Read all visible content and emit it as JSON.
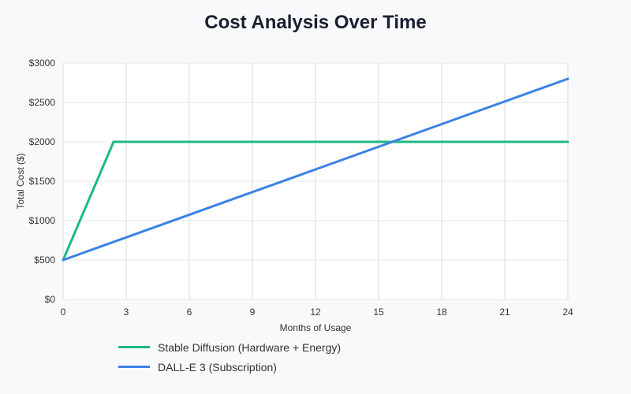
{
  "chart_data": {
    "type": "line",
    "title": "Cost Analysis Over Time",
    "xlabel": "Months of Usage",
    "ylabel": "Total Cost ($)",
    "xlim": [
      0,
      24
    ],
    "ylim": [
      0,
      3000
    ],
    "x_ticks": [
      0,
      3,
      6,
      9,
      12,
      15,
      18,
      21,
      24
    ],
    "x_tick_labels": [
      "0",
      "3",
      "6",
      "9",
      "12",
      "15",
      "18",
      "21",
      "24"
    ],
    "y_ticks": [
      0,
      500,
      1000,
      1500,
      2000,
      2500,
      3000
    ],
    "y_tick_labels": [
      "$0",
      "$500",
      "$1000",
      "$1500",
      "$2000",
      "$2500",
      "$3000"
    ],
    "grid": true,
    "legend_position": "bottom-left",
    "series": [
      {
        "name": "Stable Diffusion (Hardware + Energy)",
        "color": "#1db984",
        "points": [
          [
            0,
            500
          ],
          [
            2.4,
            2000
          ],
          [
            24,
            2000
          ]
        ]
      },
      {
        "name": "DALL-E 3 (Subscription)",
        "color": "#3b82e6",
        "points": [
          [
            0,
            500
          ],
          [
            24,
            2800
          ]
        ]
      }
    ]
  }
}
